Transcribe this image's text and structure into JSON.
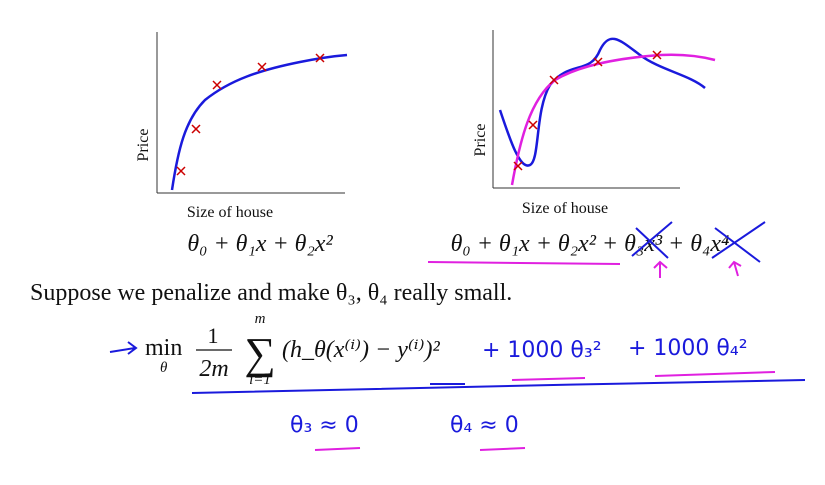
{
  "left_plot": {
    "y_label": "Price",
    "x_label": "Size of house",
    "formula": "θ₀ + θ₁x + θ₂x²"
  },
  "right_plot": {
    "y_label": "Price",
    "x_label": "Size of house",
    "formula": "θ₀ + θ₁x + θ₂x² + θ₃x³ + θ₄x⁴"
  },
  "statement": "Suppose we penalize and make θ₃, θ₄ really small.",
  "objective": {
    "min": "min",
    "under": "θ",
    "numerator": "1",
    "denominator": "2m",
    "sum": "∑",
    "sum_top": "m",
    "sum_bottom": "i=1",
    "body": "(h_θ(x⁽ⁱ⁾) − y⁽ⁱ⁾)²"
  },
  "annotations": {
    "penalty_3": "+ 1000 θ₃²",
    "penalty_4": "+ 1000 θ₄²",
    "result_3": "θ₃ ≈ 0",
    "result_4": "θ₄ ≈ 0"
  }
}
